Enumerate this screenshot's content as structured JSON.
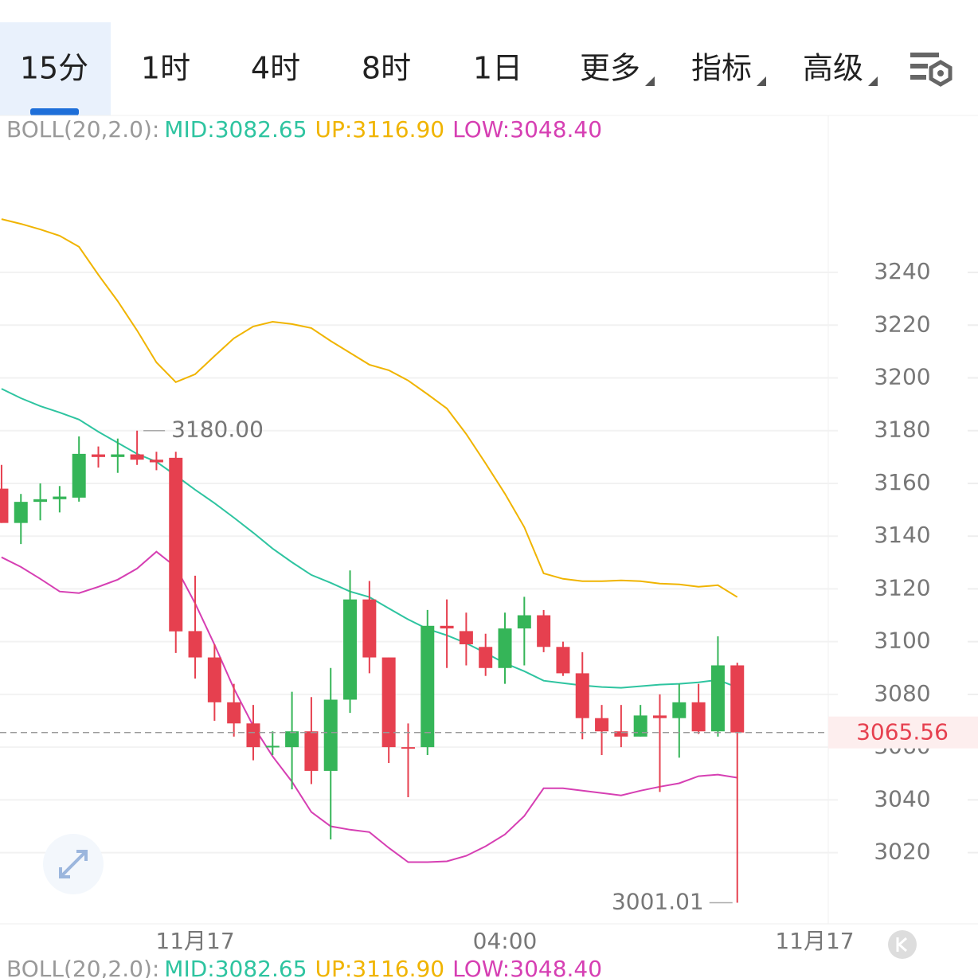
{
  "tabs": {
    "items": [
      "15分",
      "1时",
      "4时",
      "8时",
      "1日",
      "更多",
      "指标",
      "高级"
    ],
    "active": 0
  },
  "chart_data": {
    "type": "candlestick",
    "indicator": "BOLL(20,2.0):",
    "up_color": "#35b558",
    "down_color": "#e6404f",
    "xlim": [
      -0.08,
      42.7
    ],
    "ylim": [
      2993,
      3299.5
    ],
    "yticks": [
      3020,
      3040,
      3060,
      3080,
      3100,
      3120,
      3140,
      3160,
      3180,
      3200,
      3220,
      3240
    ],
    "xticks": [
      {
        "value": 10,
        "label": "11月17"
      },
      {
        "value": 26,
        "label": "04:00"
      },
      {
        "value": 42,
        "label": "11月17"
      }
    ],
    "grid": true,
    "open": [
      3158,
      3145,
      3153,
      3154,
      3154.6,
      3171,
      3170,
      3171,
      3169,
      3169.7,
      3104,
      3094,
      3077,
      3069,
      3060,
      3060,
      3066,
      3051,
      3078,
      3116,
      3094,
      3060,
      3060,
      3106,
      3104,
      3098,
      3090,
      3105,
      3110,
      3098,
      3088,
      3071,
      3066,
      3064,
      3072,
      3071,
      3077,
      3066,
      3091
    ],
    "high": [
      3167,
      3156,
      3160,
      3159,
      3177.8,
      3174,
      3177,
      3180,
      3172,
      3172,
      3125,
      3099,
      3084,
      3076,
      3066,
      3081,
      3079,
      3090,
      3127,
      3123,
      3094,
      3069,
      3112,
      3116,
      3111,
      3103,
      3111,
      3117,
      3112,
      3100,
      3096,
      3076,
      3076,
      3076,
      3080,
      3084,
      3084,
      3102,
      3092
    ],
    "low": [
      3145,
      3137,
      3146,
      3149,
      3153.1,
      3166,
      3164,
      3167,
      3165,
      3095.7,
      3086,
      3070,
      3064,
      3055,
      3057,
      3044,
      3046,
      3025,
      3073,
      3088,
      3054,
      3041,
      3057,
      3090,
      3091,
      3087,
      3084,
      3091,
      3096,
      3087,
      3063,
      3057,
      3060,
      3064,
      3043,
      3056,
      3065,
      3064,
      3001.01
    ],
    "close": [
      3145,
      3153,
      3154,
      3155,
      3171.2,
      3170,
      3171,
      3169,
      3168,
      3103.9,
      3094,
      3077,
      3069,
      3060,
      3060.5,
      3066,
      3051,
      3078,
      3116,
      3094,
      3060,
      3059.5,
      3106,
      3105,
      3099,
      3090,
      3105,
      3110,
      3098,
      3088,
      3071,
      3066,
      3064,
      3072,
      3071,
      3077,
      3066,
      3091,
      3065.56
    ],
    "series": [
      {
        "name": "MID:",
        "color": "#2ec4a0",
        "legend_label": "3082.65",
        "values": [
          3195.9,
          3192.3,
          3189.3,
          3186.9,
          3184.2,
          3179.6,
          3175.4,
          3171.2,
          3168.2,
          3163.0,
          3157.6,
          3152.5,
          3147.0,
          3141.3,
          3135.3,
          3130.1,
          3125.3,
          3122.3,
          3119.0,
          3116.9,
          3112.6,
          3108.4,
          3104.8,
          3102.4,
          3099.4,
          3095.7,
          3091.8,
          3088.8,
          3085.2,
          3084.3,
          3083.4,
          3082.8,
          3082.5,
          3083.1,
          3083.7,
          3084.0,
          3084.6,
          3085.5,
          3082.65
        ]
      },
      {
        "name": "UP:",
        "color": "#f0b400",
        "legend_label": "3116.90",
        "values": [
          3260.2,
          3258.4,
          3256.3,
          3253.9,
          3249.7,
          3239.1,
          3229.1,
          3218.0,
          3205.9,
          3198.4,
          3201.4,
          3208.3,
          3215.0,
          3219.5,
          3221.3,
          3220.4,
          3218.9,
          3214.0,
          3209.5,
          3205.0,
          3202.9,
          3199.0,
          3193.8,
          3188.4,
          3178.7,
          3167.6,
          3156.1,
          3143.4,
          3125.9,
          3123.8,
          3122.9,
          3122.9,
          3123.2,
          3122.9,
          3122.0,
          3121.7,
          3120.8,
          3121.4,
          3116.9
        ]
      },
      {
        "name": "LOW:",
        "color": "#d63fb3",
        "legend_label": "3048.40",
        "values": [
          3132.0,
          3128.3,
          3123.8,
          3119.0,
          3118.4,
          3120.8,
          3123.5,
          3127.7,
          3134.1,
          3128.3,
          3114.5,
          3098.8,
          3082.2,
          3068.0,
          3056.5,
          3046.9,
          3035.4,
          3030.0,
          3028.7,
          3027.8,
          3021.8,
          3016.4,
          3016.4,
          3016.7,
          3018.8,
          3022.4,
          3026.9,
          3033.9,
          3044.4,
          3044.4,
          3043.5,
          3042.6,
          3041.7,
          3043.5,
          3045.0,
          3046.3,
          3049.0,
          3049.6,
          3048.4
        ]
      }
    ],
    "max_annotation": {
      "index": 7,
      "value": 3180,
      "label": "3180.00"
    },
    "min_annotation": {
      "index": 38,
      "value": 3001.01
    },
    "last_price": 3065.56
  }
}
